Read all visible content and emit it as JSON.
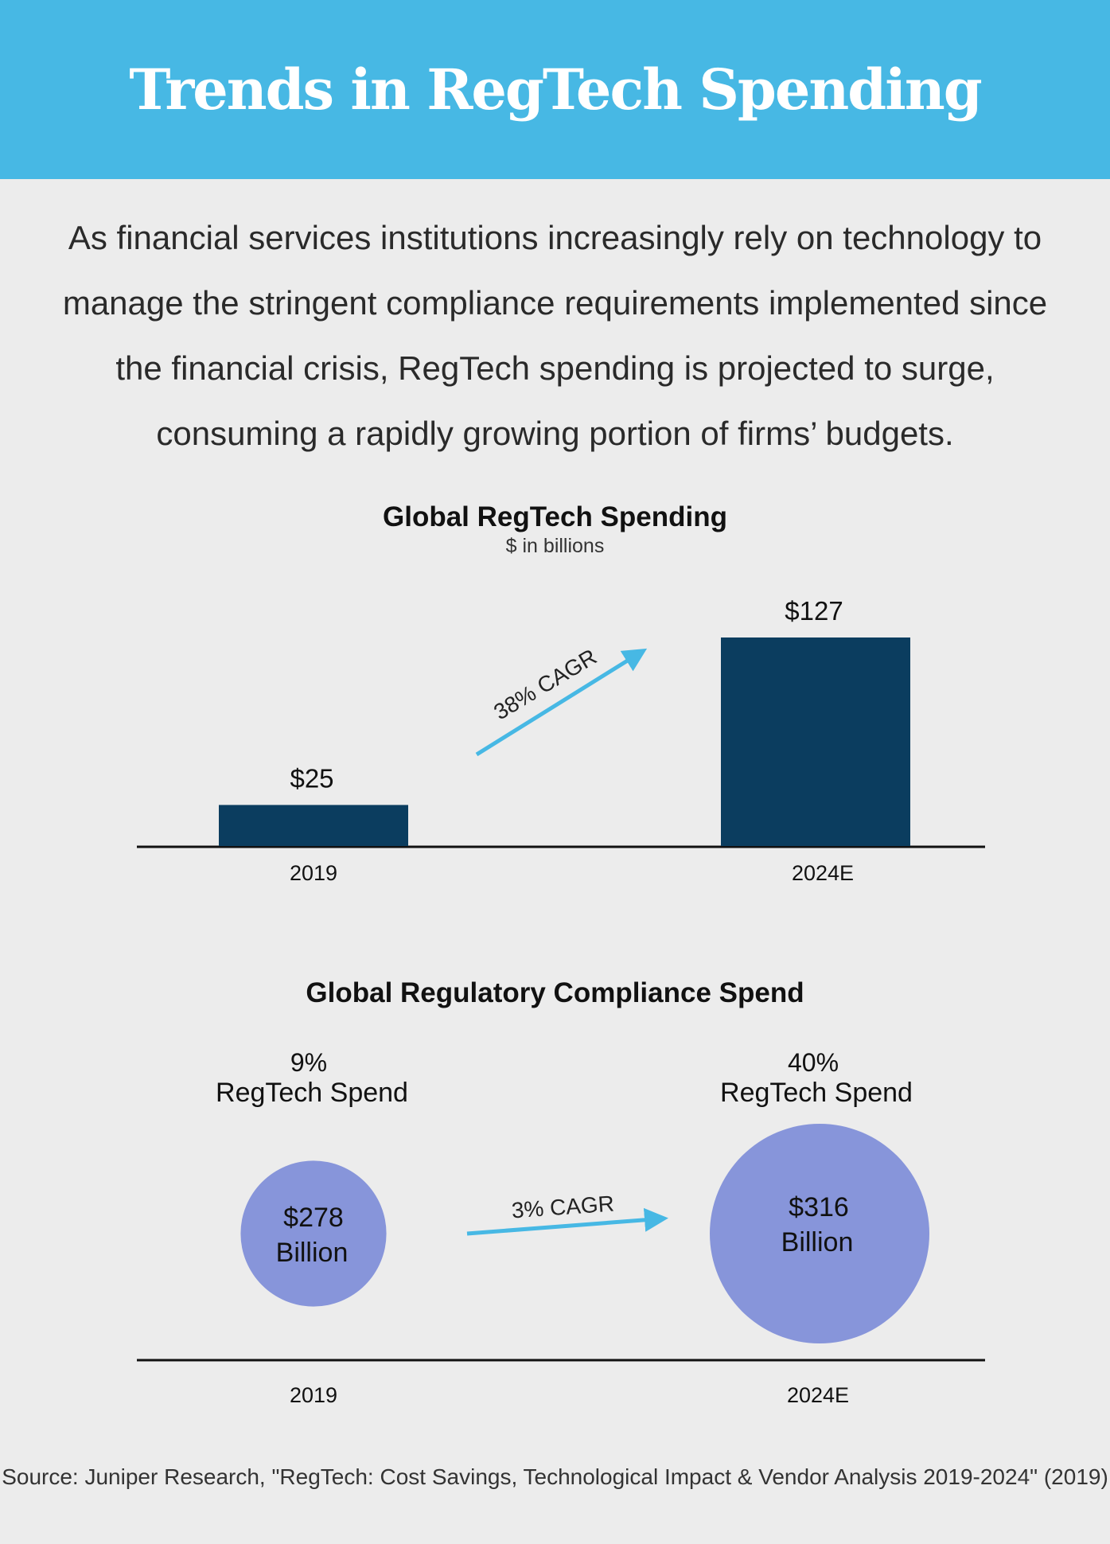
{
  "header": {
    "title": "Trends in RegTech Spending"
  },
  "intro": {
    "text": "As financial services institutions increasingly rely on technology to manage the stringent compliance requirements implemented since the financial crisis, RegTech spending is projected to surge, consuming a rapidly growing portion of firms’ budgets."
  },
  "colors": {
    "header": "#47b8e4",
    "bar": "#0b3d5f",
    "bubble": "#8795da",
    "arrow": "#47b8e4",
    "background": "#ececec"
  },
  "chart_data": [
    {
      "type": "bar",
      "title": "Global RegTech Spending",
      "subtitle": "$ in billions",
      "categories": [
        "2019",
        "2024E"
      ],
      "values": [
        25,
        127
      ],
      "value_labels": [
        "$25",
        "$127"
      ],
      "annotation": "38% CAGR",
      "ylim": [
        0,
        127
      ]
    },
    {
      "type": "bubble",
      "title": "Global Regulatory Compliance Spend",
      "categories": [
        "2019",
        "2024E"
      ],
      "values": [
        278,
        316
      ],
      "value_labels": [
        {
          "line1": "$278",
          "line2": "Billion"
        },
        {
          "line1": "$316",
          "line2": "Billion"
        }
      ],
      "share_labels": [
        {
          "percent": "9%",
          "text": "RegTech Spend"
        },
        {
          "percent": "40%",
          "text": "RegTech Spend"
        }
      ],
      "annotation": "3% CAGR"
    }
  ],
  "source": {
    "text": "Source: Juniper Research, \"RegTech: Cost Savings, Technological Impact & Vendor Analysis 2019-2024\" (2019)"
  }
}
